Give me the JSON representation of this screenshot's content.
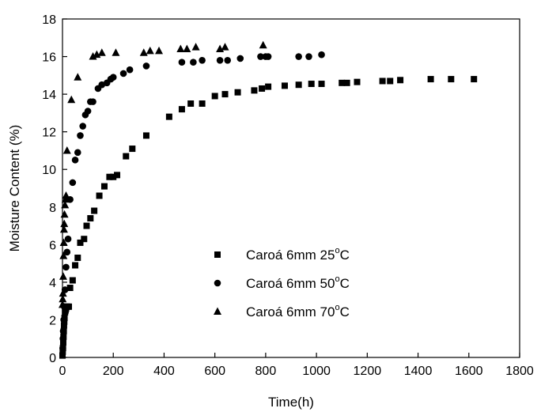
{
  "chart_data": {
    "type": "scatter",
    "xlabel": "Time(h)",
    "ylabel": "Moisture Content (%)",
    "xlim": [
      0,
      1800
    ],
    "ylim": [
      0,
      18
    ],
    "xticks": [
      0,
      200,
      400,
      600,
      800,
      1000,
      1200,
      1400,
      1600,
      1800
    ],
    "yticks": [
      0,
      2,
      4,
      6,
      8,
      10,
      12,
      14,
      16,
      18
    ],
    "grid": false,
    "legend_position": "center",
    "series": [
      {
        "name": "Caroá 6mm 25°C",
        "name_main": "Caroá 6mm 25",
        "name_sup": "o",
        "name_tail": "C",
        "marker": "square",
        "color": "#000000",
        "x": [
          0,
          1,
          2,
          3,
          4,
          5,
          6,
          7,
          8,
          10,
          12,
          14,
          16,
          20,
          25,
          30,
          40,
          50,
          60,
          70,
          85,
          95,
          110,
          125,
          145,
          165,
          185,
          200,
          215,
          250,
          275,
          330,
          420,
          470,
          505,
          550,
          600,
          640,
          690,
          755,
          785,
          810,
          875,
          930,
          980,
          1020,
          1100,
          1120,
          1160,
          1260,
          1290,
          1330,
          1450,
          1530,
          1620
        ],
        "y": [
          0.1,
          0.3,
          0.5,
          0.8,
          1.1,
          1.4,
          1.7,
          1.9,
          2.1,
          2.4,
          2.5,
          2.6,
          2.7,
          2.7,
          2.7,
          3.7,
          4.1,
          4.9,
          5.3,
          6.1,
          6.3,
          7.0,
          7.4,
          7.8,
          8.6,
          9.1,
          9.6,
          9.6,
          9.7,
          10.7,
          11.1,
          11.8,
          12.8,
          13.2,
          13.5,
          13.5,
          13.9,
          14.0,
          14.1,
          14.2,
          14.3,
          14.4,
          14.45,
          14.5,
          14.55,
          14.55,
          14.6,
          14.6,
          14.65,
          14.7,
          14.7,
          14.75,
          14.8,
          14.8,
          14.8
        ]
      },
      {
        "name": "Caroá 6mm 50°C",
        "name_main": "Caroá 6mm 50",
        "name_sup": "o",
        "name_tail": "C",
        "marker": "circle",
        "color": "#000000",
        "x": [
          1,
          2,
          3,
          5,
          7,
          10,
          14,
          18,
          22,
          30,
          40,
          50,
          60,
          70,
          80,
          90,
          100,
          110,
          120,
          140,
          155,
          175,
          190,
          200,
          240,
          265,
          330,
          470,
          515,
          550,
          620,
          650,
          700,
          780,
          800,
          810,
          930,
          970,
          1020
        ],
        "y": [
          0.5,
          1.0,
          1.4,
          2.0,
          2.7,
          3.6,
          4.8,
          5.6,
          6.3,
          8.4,
          9.3,
          10.5,
          10.9,
          11.8,
          12.3,
          12.9,
          13.1,
          13.6,
          13.6,
          14.3,
          14.5,
          14.6,
          14.8,
          14.9,
          15.1,
          15.3,
          15.5,
          15.7,
          15.7,
          15.8,
          15.8,
          15.8,
          15.9,
          16.0,
          16.0,
          16.0,
          16.0,
          16.0,
          16.1
        ]
      },
      {
        "name": "Caroá 6mm 70°C",
        "name_main": "Caroá 6mm 70",
        "name_sup": "o",
        "name_tail": "C",
        "marker": "triangle",
        "color": "#000000",
        "x": [
          0,
          1,
          2,
          3,
          4,
          5,
          6,
          7,
          8,
          10,
          12,
          14,
          18,
          35,
          60,
          120,
          135,
          155,
          210,
          320,
          345,
          380,
          465,
          490,
          525,
          620,
          640,
          790
        ],
        "y": [
          2.8,
          3.1,
          3.4,
          4.3,
          5.4,
          6.1,
          6.8,
          7.1,
          7.6,
          8.1,
          8.4,
          8.6,
          11.0,
          13.7,
          14.9,
          16.0,
          16.1,
          16.2,
          16.2,
          16.2,
          16.3,
          16.3,
          16.4,
          16.4,
          16.5,
          16.4,
          16.5,
          16.6
        ]
      }
    ]
  }
}
